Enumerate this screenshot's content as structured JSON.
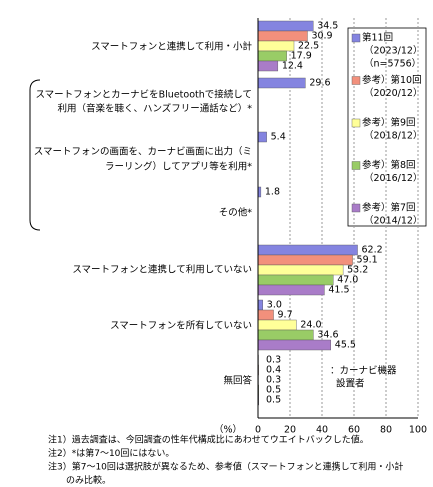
{
  "chart_data": {
    "type": "bar",
    "orientation": "horizontal",
    "categories": [
      [
        "スマートフォンと連携して利用・小計"
      ],
      [
        "スマートフォンとカーナビをBluetoothで接続して",
        "利用（音楽を聴く、ハンズフリー通話など）*"
      ],
      [
        "スマートフォンの画面を、カーナビ画面に出力（ミ",
        "ラーリング）してアプリ等を利用*"
      ],
      [
        "その他*"
      ],
      [
        "スマートフォンと連携して利用していない"
      ],
      [
        "スマートフォンを所有していない"
      ],
      [
        "無回答"
      ]
    ],
    "series": [
      {
        "name": "第11回",
        "period": "（2023/12）",
        "n": "（n=5756）",
        "color": "#8484e0",
        "values": [
          34.5,
          29.6,
          5.4,
          1.8,
          62.2,
          3.0,
          0.3
        ],
        "value_labels": [
          "34.5",
          "29.6",
          "5.4",
          "1.8",
          "62.2",
          "3.0",
          "0.3"
        ]
      },
      {
        "name": "参考）第10回",
        "period": "（2020/12）",
        "color": "#f2907c",
        "values": [
          30.9,
          null,
          null,
          null,
          59.1,
          9.7,
          0.4
        ],
        "value_labels": [
          "30.9",
          null,
          null,
          null,
          "59.1",
          "9.7",
          "0.4"
        ]
      },
      {
        "name": "参考）第9回",
        "period": "（2018/12）",
        "color": "#ffff99",
        "values": [
          22.5,
          null,
          null,
          null,
          53.2,
          24.0,
          0.3
        ],
        "value_labels": [
          "22.5",
          null,
          null,
          null,
          "53.2",
          "24.0",
          "0.3"
        ]
      },
      {
        "name": "参考）第8回",
        "period": "（2016/12）",
        "color": "#99cc66",
        "values": [
          17.9,
          null,
          null,
          null,
          47.0,
          34.6,
          0.5
        ],
        "value_labels": [
          "17.9",
          null,
          null,
          null,
          "47.0",
          "34.6",
          "0.5"
        ]
      },
      {
        "name": "参考）第7回",
        "period": "（2014/12）",
        "color": "#a97cc8",
        "values": [
          12.4,
          null,
          null,
          null,
          41.5,
          45.5,
          0.5
        ],
        "value_labels": [
          "12.4",
          null,
          null,
          null,
          "41.5",
          "45.5",
          "0.5"
        ]
      }
    ],
    "xlim": [
      0,
      100
    ],
    "xticks": [
      0,
      20,
      40,
      60,
      80,
      100
    ],
    "x_unit": "（%）",
    "grid": true,
    "annotation": [
      "：カーナビ機器",
      "設置者"
    ],
    "notes": [
      "注1）過去調査は、今回調査の性年代構成比にあわせてウエイトバックした値。",
      "注2）*は第7～10回にはない。",
      "注3）第7～10回は選択肢が異なるため、参考値（スマートフォンと連携して利用・小計",
      "のみ比較。"
    ]
  }
}
